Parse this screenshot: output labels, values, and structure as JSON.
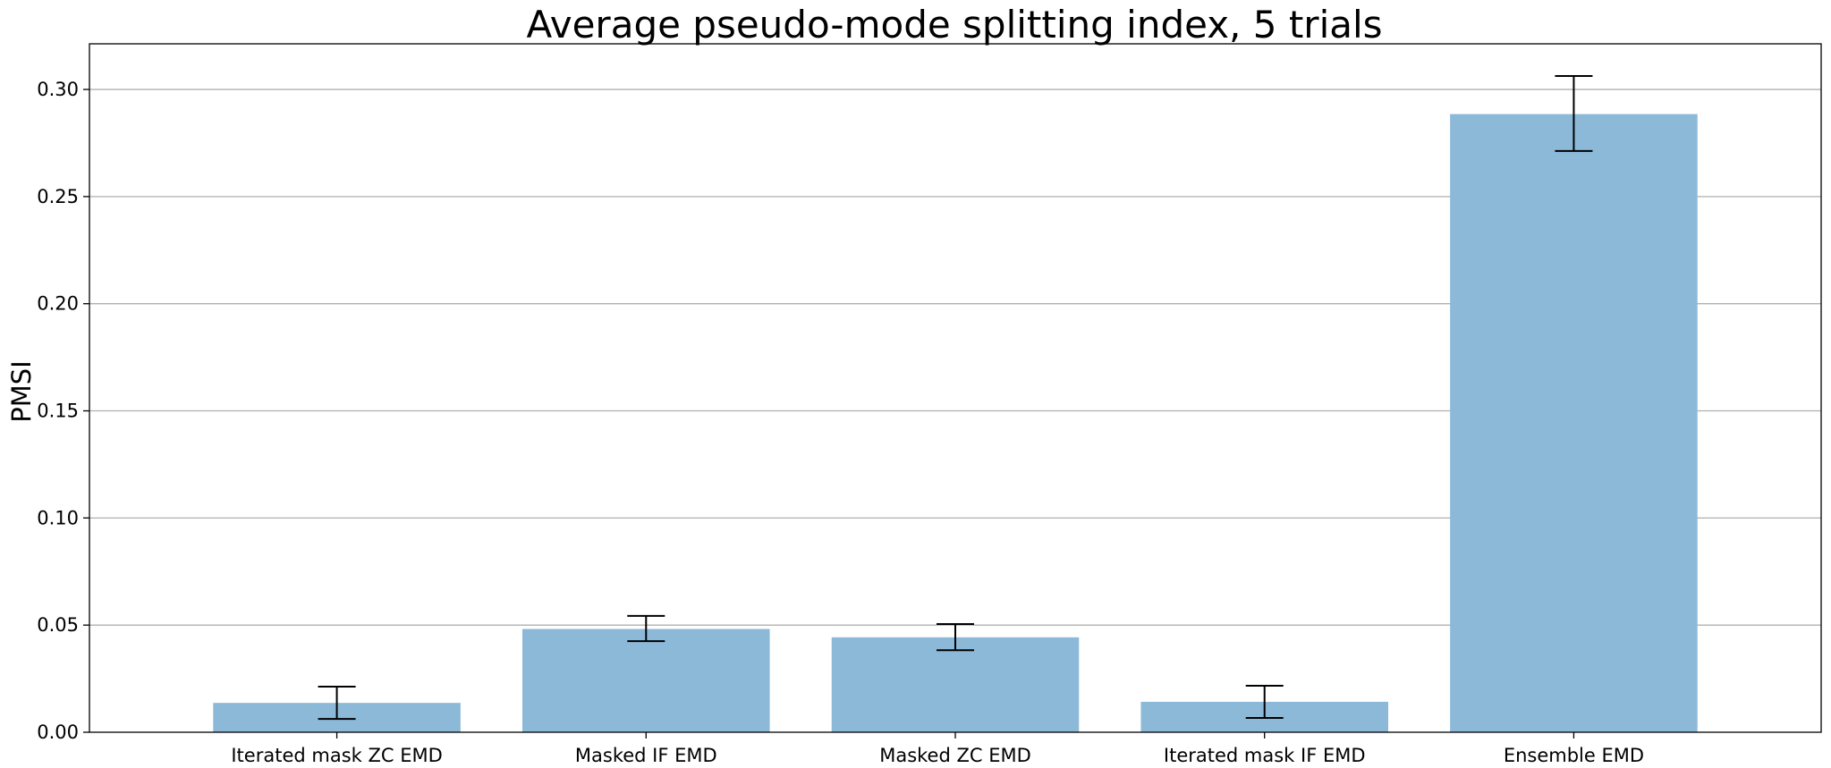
{
  "chart_data": {
    "type": "bar",
    "title": "Average pseudo-mode splitting index, 5 trials",
    "xlabel": "",
    "ylabel": "PMSI",
    "categories": [
      "Iterated mask ZC EMD",
      "Masked IF EMD",
      "Masked ZC EMD",
      "Iterated mask IF EMD",
      "Ensemble EMD"
    ],
    "values": [
      0.0137,
      0.0482,
      0.0443,
      0.0142,
      0.2885
    ],
    "error_low": [
      0.0062,
      0.0425,
      0.0383,
      0.0067,
      0.2713
    ],
    "error_high": [
      0.0213,
      0.0543,
      0.0505,
      0.0217,
      0.3063
    ],
    "ylim": [
      0.0,
      0.3213
    ],
    "yticks": [
      "0.00",
      "0.05",
      "0.10",
      "0.15",
      "0.20",
      "0.25",
      "0.30"
    ],
    "ytick_values": [
      0.0,
      0.05,
      0.1,
      0.15,
      0.2,
      0.25,
      0.3
    ],
    "grid": "y",
    "bar_color": "#8db9d9"
  }
}
